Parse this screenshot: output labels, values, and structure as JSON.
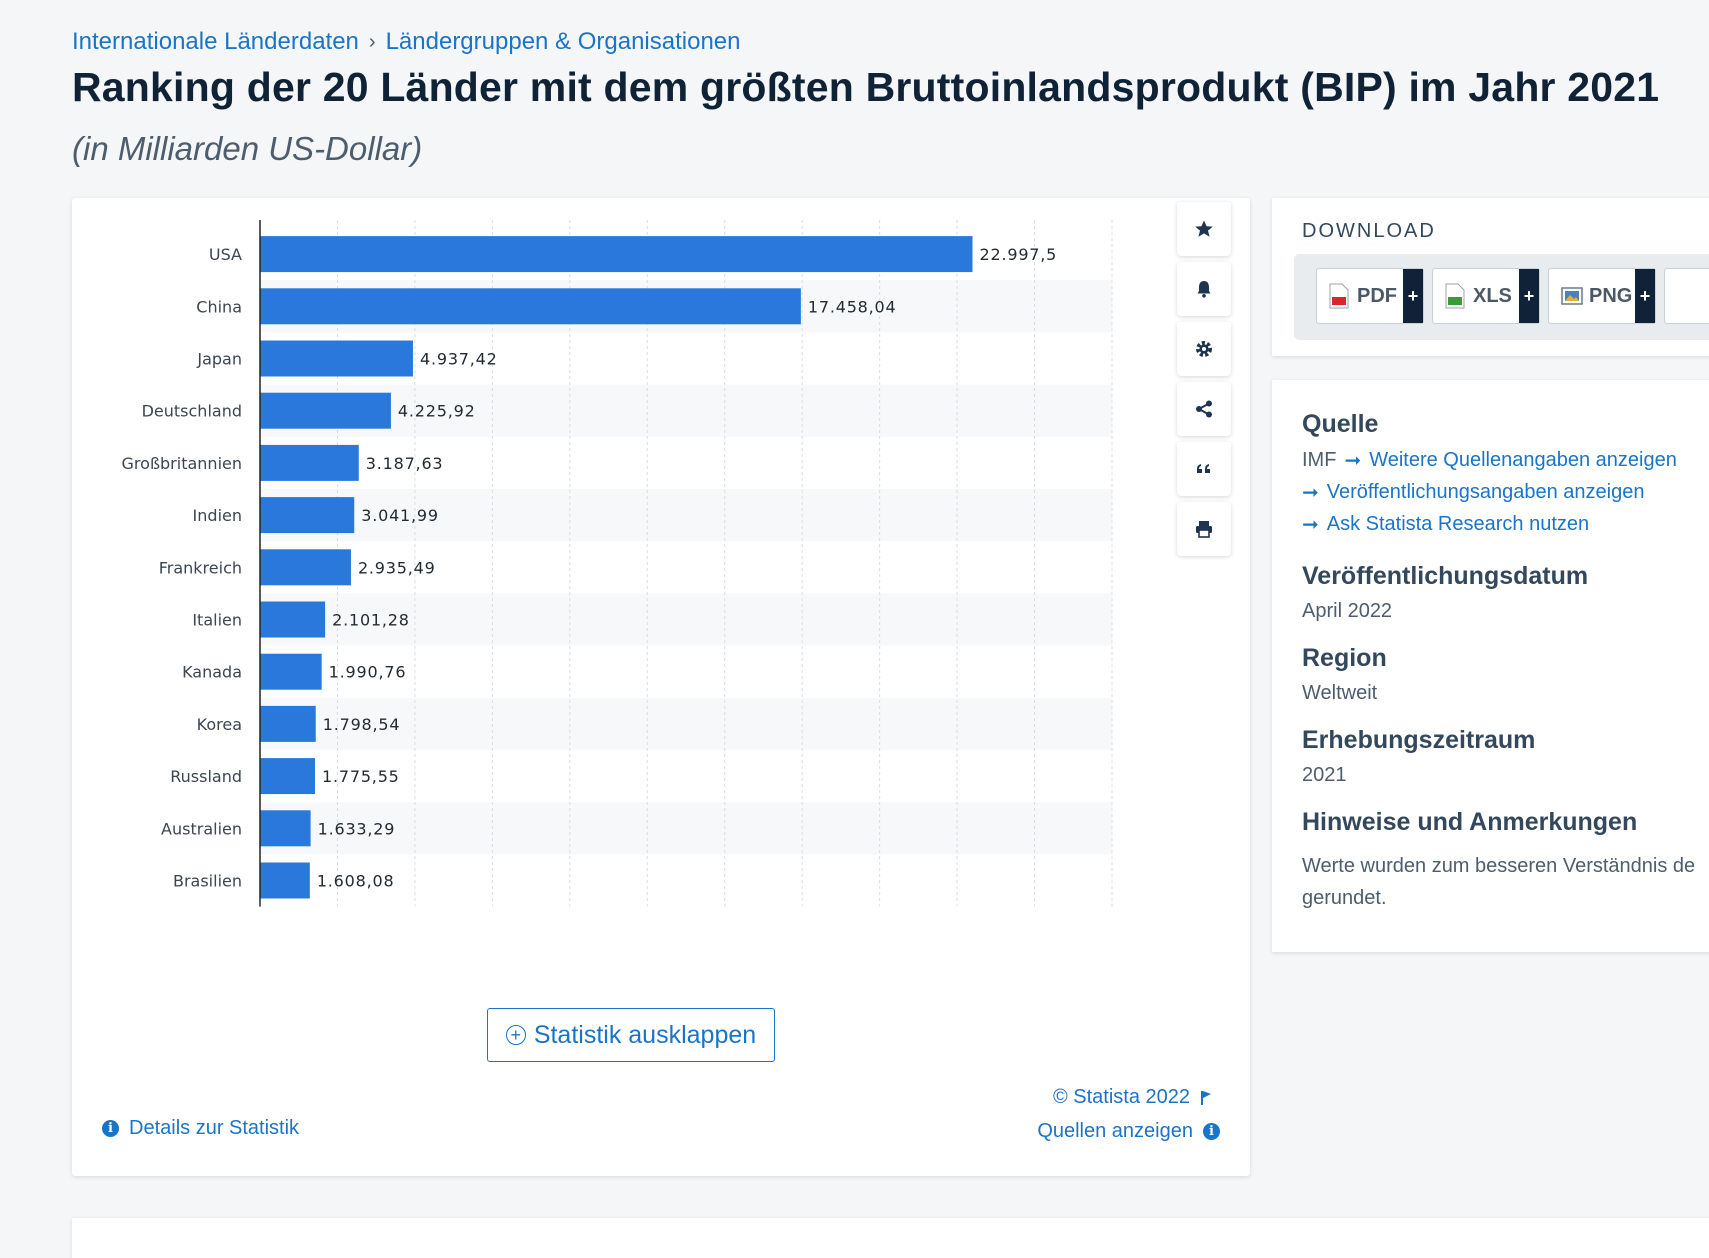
{
  "breadcrumb": {
    "items": [
      "Internationale Länderdaten",
      "Ländergruppen & Organisationen"
    ],
    "separator": "›"
  },
  "page": {
    "title": "Ranking der 20 Länder mit dem größten Bruttoinlandsprodukt (BIP) im Jahr 2021",
    "subtitle": "(in Milliarden US-Dollar)"
  },
  "chart_data": {
    "type": "bar",
    "orientation": "horizontal",
    "categories": [
      "USA",
      "China",
      "Japan",
      "Deutschland",
      "Großbritannien",
      "Indien",
      "Frankreich",
      "Italien",
      "Kanada",
      "Korea",
      "Russland",
      "Australien",
      "Brasilien"
    ],
    "values": [
      22997.5,
      17458.04,
      4937.42,
      4225.92,
      3187.63,
      3041.99,
      2935.49,
      2101.28,
      1990.76,
      1798.54,
      1775.55,
      1633.29,
      1608.08
    ],
    "data_labels": [
      "22.997,5",
      "17.458,04",
      "4.937,42",
      "4.225,92",
      "3.187,63",
      "3.041,99",
      "2.935,49",
      "2.101,28",
      "1.990,76",
      "1.798,54",
      "1.775,55",
      "1.633,29",
      "1.608,08"
    ],
    "xlim": [
      0,
      27500
    ],
    "grid": true,
    "bar_color": "#2b78dc",
    "title": "",
    "xlabel": "",
    "ylabel": ""
  },
  "toolbar": {
    "icons": [
      "star-icon",
      "bell-icon",
      "gear-icon",
      "share-icon",
      "quote-icon",
      "print-icon"
    ]
  },
  "chart_footer": {
    "expand_label": "Statistik ausklappen",
    "copyright": "© Statista 2022",
    "sources_link": "Quellen anzeigen",
    "details_link": "Details zur Statistik"
  },
  "download": {
    "heading": "DOWNLOAD",
    "buttons": [
      {
        "label": "PDF",
        "color": "#d8262e"
      },
      {
        "label": "XLS",
        "color": "#3c9a3a"
      },
      {
        "label": "PNG",
        "color": "#4f7fbf"
      }
    ]
  },
  "info": {
    "source_heading": "Quelle",
    "source_name": "IMF",
    "source_links": [
      "Weitere Quellenangaben anzeigen",
      "Veröffentlichungsangaben anzeigen",
      "Ask Statista Research nutzen"
    ],
    "pubdate_heading": "Veröffentlichungsdatum",
    "pubdate_value": "April 2022",
    "region_heading": "Region",
    "region_value": "Weltweit",
    "period_heading": "Erhebungszeitraum",
    "period_value": "2021",
    "notes_heading": "Hinweise und Anmerkungen",
    "notes_text": "Werte wurden zum besseren Verständnis de gerundet."
  },
  "colors": {
    "accent": "#1a74c8",
    "title": "#102336"
  }
}
